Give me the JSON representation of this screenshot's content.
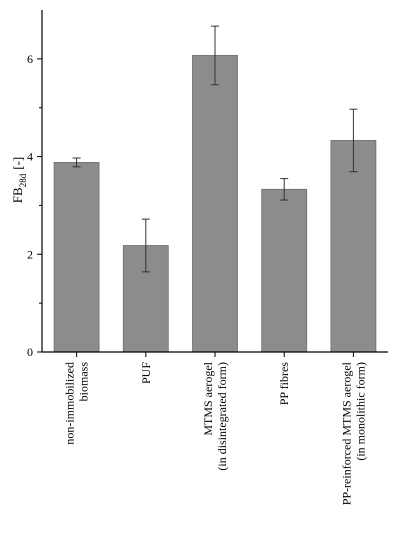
{
  "chart_data": {
    "type": "bar",
    "title": "",
    "xlabel": "",
    "ylabel": {
      "main": "FB",
      "sub": "28d",
      "unit": "[-]"
    },
    "ylim": [
      0,
      7
    ],
    "yticks": [
      0,
      2,
      4,
      6
    ],
    "categories": [
      [
        "non-immobilized",
        "biomass"
      ],
      [
        "PUF"
      ],
      [
        "MTMS aerogel",
        "(in disintegrated form)"
      ],
      [
        "PP fibres"
      ],
      [
        "PP-reinforced MTMS aerogel",
        "(in monolithic form)"
      ]
    ],
    "values": [
      3.88,
      2.18,
      6.07,
      3.33,
      4.33
    ],
    "errors": [
      0.09,
      0.54,
      0.6,
      0.22,
      0.64
    ],
    "bar_color": "#8c8c8c",
    "grid": false,
    "legend": "none"
  }
}
